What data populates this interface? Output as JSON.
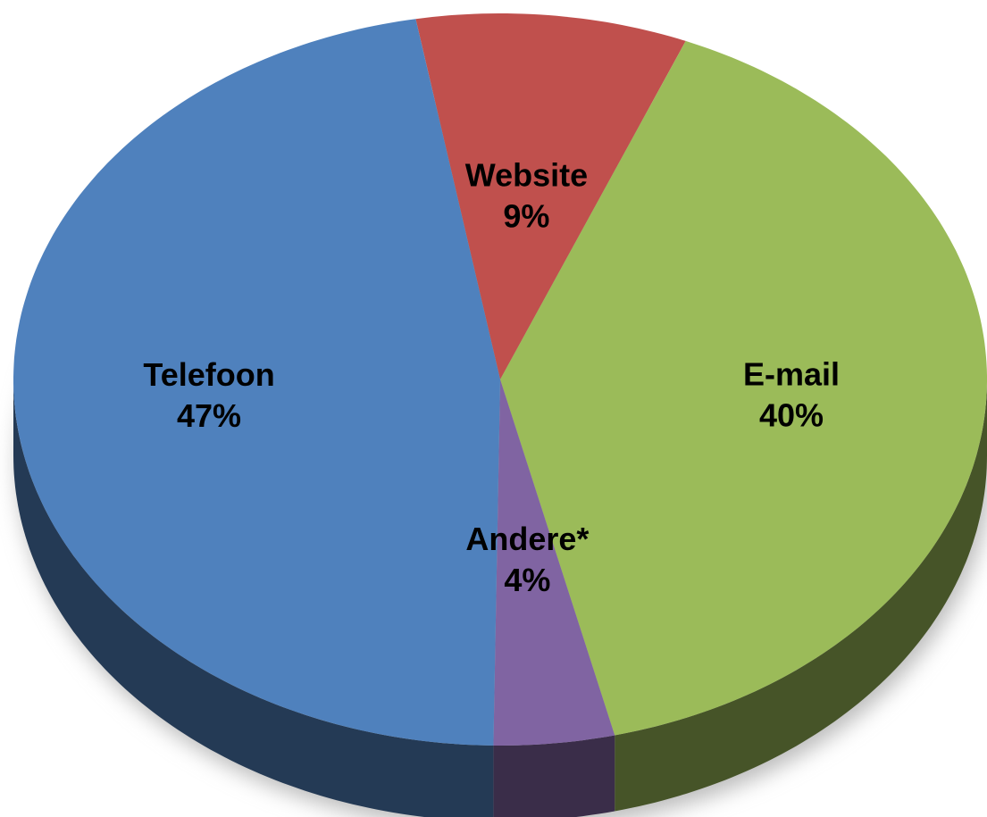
{
  "chart_data": {
    "type": "pie",
    "categories": [
      "Website",
      "E-mail",
      "Andere*",
      "Telefoon"
    ],
    "values": [
      9,
      40,
      4,
      47
    ],
    "value_labels": [
      "9%",
      "40%",
      "4%",
      "47%"
    ],
    "colors": [
      "#c0504d",
      "#9bbb59",
      "#8064a2",
      "#4f81bd"
    ]
  }
}
